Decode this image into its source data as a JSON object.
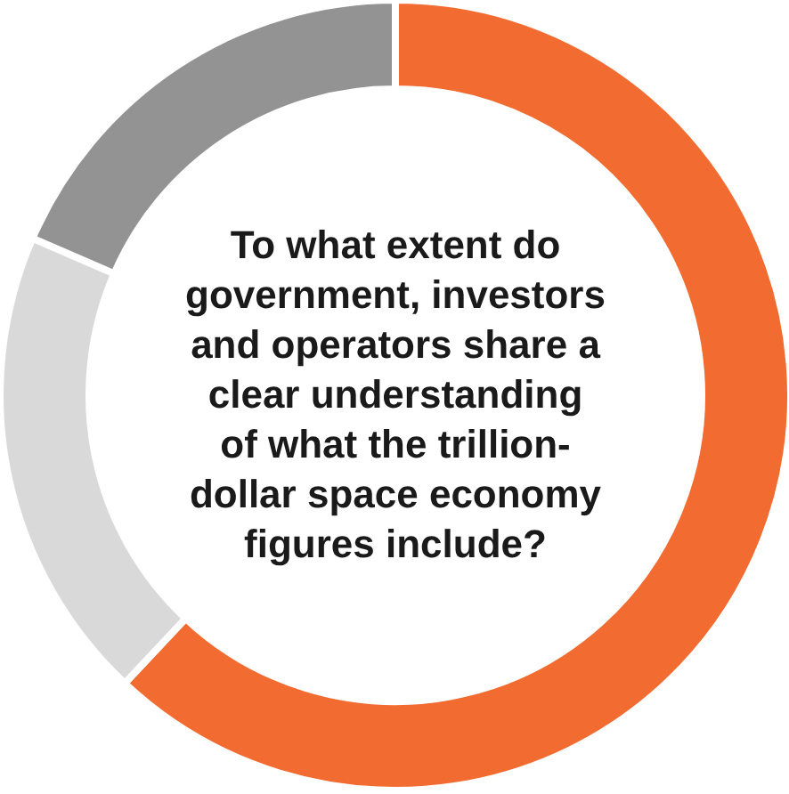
{
  "chart_data": {
    "type": "donut",
    "title": "To what extent do government, investors and operators share a clear understanding of what the trillion-dollar space economy figures include?",
    "categories": [
      null,
      null,
      null
    ],
    "values": [
      62,
      19.5,
      18.5
    ],
    "colors": [
      "#f26b30",
      "#d9d9d9",
      "#939393"
    ]
  }
}
